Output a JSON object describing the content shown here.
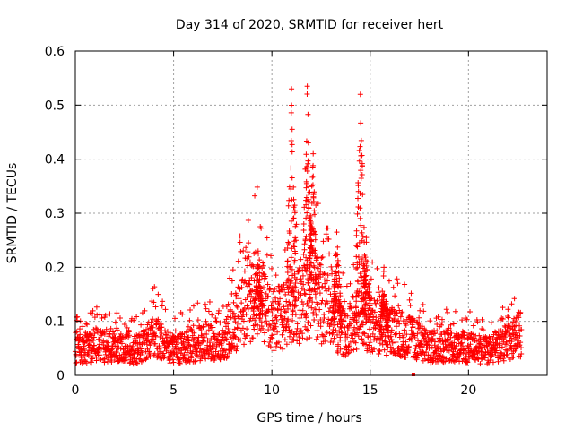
{
  "chart_data": {
    "type": "scatter",
    "title": "Day 314 of 2020, SRMTID for receiver hert",
    "xlabel": "GPS time / hours",
    "ylabel": "SRMTID / TECUs",
    "xlim": [
      0,
      24
    ],
    "ylim": [
      0,
      0.6
    ],
    "xticks": [
      0,
      5,
      10,
      15,
      20
    ],
    "yticks": [
      0,
      0.1,
      0.2,
      0.3,
      0.4,
      0.5,
      0.6
    ],
    "xtick_labels": [
      "0",
      "5",
      "10",
      "15",
      "20"
    ],
    "ytick_labels": [
      "0",
      "0.1",
      "0.2",
      "0.3",
      "0.4",
      "0.5",
      "0.6"
    ],
    "grid": true,
    "marker": "+",
    "color": "#ff0000",
    "x_extent": [
      0,
      22.7
    ],
    "lone_point": {
      "x": 17.2,
      "y": 0.0
    },
    "baseline_profile": [
      {
        "x": 0.0,
        "y": 0.045
      },
      {
        "x": 1.0,
        "y": 0.055
      },
      {
        "x": 2.0,
        "y": 0.05
      },
      {
        "x": 3.0,
        "y": 0.045
      },
      {
        "x": 4.0,
        "y": 0.07
      },
      {
        "x": 5.0,
        "y": 0.045
      },
      {
        "x": 6.5,
        "y": 0.06
      },
      {
        "x": 7.5,
        "y": 0.055
      },
      {
        "x": 8.5,
        "y": 0.12
      },
      {
        "x": 9.2,
        "y": 0.15
      },
      {
        "x": 10.0,
        "y": 0.1
      },
      {
        "x": 11.0,
        "y": 0.11
      },
      {
        "x": 12.0,
        "y": 0.15
      },
      {
        "x": 13.0,
        "y": 0.11
      },
      {
        "x": 13.8,
        "y": 0.07
      },
      {
        "x": 14.5,
        "y": 0.12
      },
      {
        "x": 15.0,
        "y": 0.09
      },
      {
        "x": 16.0,
        "y": 0.08
      },
      {
        "x": 17.0,
        "y": 0.07
      },
      {
        "x": 18.0,
        "y": 0.05
      },
      {
        "x": 19.0,
        "y": 0.055
      },
      {
        "x": 20.0,
        "y": 0.05
      },
      {
        "x": 21.0,
        "y": 0.045
      },
      {
        "x": 22.0,
        "y": 0.06
      },
      {
        "x": 22.7,
        "y": 0.075
      }
    ],
    "peaks": [
      {
        "x": 11.0,
        "y": 0.53
      },
      {
        "x": 11.8,
        "y": 0.535
      },
      {
        "x": 12.1,
        "y": 0.41
      },
      {
        "x": 14.5,
        "y": 0.52
      },
      {
        "x": 14.8,
        "y": 0.255
      },
      {
        "x": 9.3,
        "y": 0.23
      },
      {
        "x": 13.3,
        "y": 0.265
      },
      {
        "x": 15.7,
        "y": 0.2
      }
    ]
  }
}
